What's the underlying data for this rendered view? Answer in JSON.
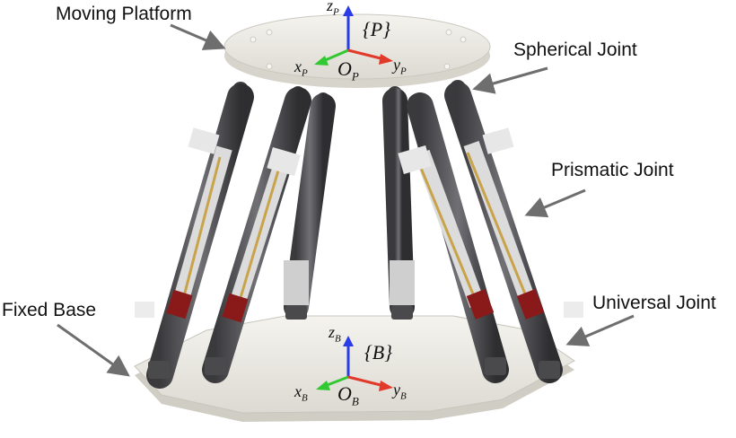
{
  "labels": {
    "moving_platform": "Moving Platform",
    "spherical_joint": "Spherical Joint",
    "prismatic_joint": "Prismatic Joint",
    "fixed_base": "Fixed Base",
    "universal_joint": "Universal Joint"
  },
  "frames": {
    "platform": {
      "frame_name": "{P}",
      "origin": "O",
      "origin_sub": "P",
      "x": "x",
      "x_sub": "P",
      "y": "y",
      "y_sub": "P",
      "z": "z",
      "z_sub": "P"
    },
    "base": {
      "frame_name": "{B}",
      "origin": "O",
      "origin_sub": "B",
      "x": "x",
      "x_sub": "B",
      "y": "y",
      "y_sub": "B",
      "z": "z",
      "z_sub": "B"
    }
  },
  "colors": {
    "axis_x": "#32c832",
    "axis_y": "#e23a2a",
    "axis_z": "#2a3be8",
    "pointer": "#6e6e6e",
    "platform": "#ecebe4",
    "actuator_dark": "#4a4a4d",
    "actuator_light": "#dcdcdc",
    "accent_red": "#8a1a1a"
  }
}
